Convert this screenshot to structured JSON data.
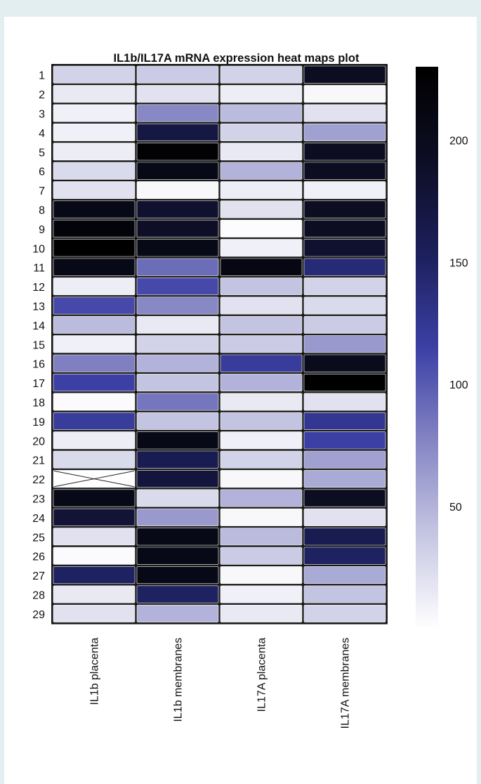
{
  "chart_data": {
    "type": "heatmap",
    "title": "IL1b/IL17A mRNA expression heat maps plot",
    "columns": [
      "IL1b placenta",
      "IL1b membranes",
      "IL17A placenta",
      "IL17A membranes"
    ],
    "rows": [
      "1",
      "2",
      "3",
      "4",
      "5",
      "6",
      "7",
      "8",
      "9",
      "10",
      "11",
      "12",
      "13",
      "14",
      "15",
      "16",
      "17",
      "18",
      "19",
      "20",
      "21",
      "22",
      "23",
      "24",
      "25",
      "26",
      "27",
      "28",
      "29"
    ],
    "values": [
      [
        30,
        35,
        30,
        195
      ],
      [
        15,
        20,
        12,
        5
      ],
      [
        10,
        75,
        45,
        20
      ],
      [
        10,
        170,
        30,
        60
      ],
      [
        12,
        225,
        15,
        195
      ],
      [
        25,
        205,
        50,
        195
      ],
      [
        20,
        5,
        12,
        10
      ],
      [
        205,
        185,
        20,
        195
      ],
      [
        220,
        190,
        2,
        195
      ],
      [
        250,
        205,
        10,
        185
      ],
      [
        205,
        90,
        210,
        140
      ],
      [
        12,
        110,
        40,
        30
      ],
      [
        110,
        75,
        20,
        25
      ],
      [
        45,
        15,
        40,
        35
      ],
      [
        10,
        30,
        35,
        65
      ],
      [
        80,
        50,
        120,
        200
      ],
      [
        115,
        40,
        50,
        230
      ],
      [
        3,
        85,
        15,
        20
      ],
      [
        120,
        40,
        40,
        125
      ],
      [
        12,
        205,
        10,
        115
      ],
      [
        25,
        160,
        30,
        60
      ],
      [
        null,
        175,
        5,
        55
      ],
      [
        205,
        25,
        50,
        195
      ],
      [
        180,
        65,
        5,
        20
      ],
      [
        20,
        205,
        45,
        160
      ],
      [
        3,
        205,
        35,
        150
      ],
      [
        150,
        205,
        5,
        55
      ],
      [
        15,
        150,
        10,
        40
      ],
      [
        20,
        50,
        15,
        30
      ]
    ],
    "missing_cells": [
      {
        "row": "22",
        "column": "IL1b placenta"
      }
    ],
    "colorbar": {
      "ticks": [
        200,
        150,
        100,
        50
      ],
      "range": [
        0,
        230
      ],
      "colors": [
        "#ffffff",
        "#c6c6e3",
        "#8585c4",
        "#3c40a5",
        "#1c1f5b",
        "#0d0e24",
        "#000000"
      ]
    }
  }
}
